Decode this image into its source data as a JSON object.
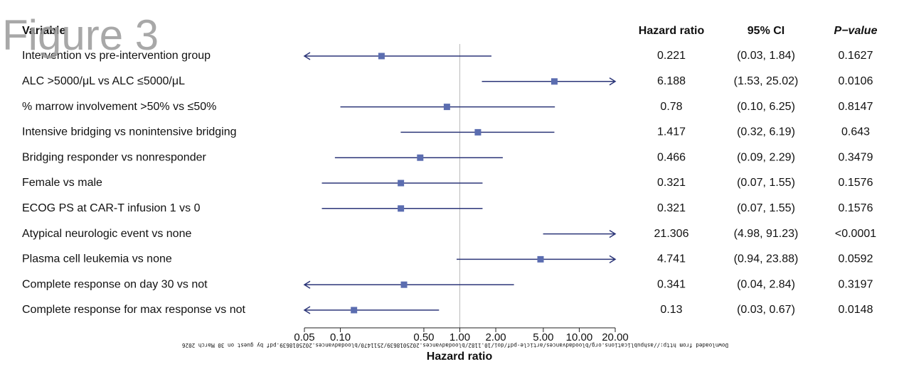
{
  "figure_label": "Figure 3",
  "watermark": "Downloaded from http://ashpublications.org/bloodadvances/article-pdf/doi/10.1182/bloodadvances.2025018639/2511470/bloodadvances.2025018639.pdf by guest on 30 March 2026",
  "chart_data": {
    "type": "forest",
    "columns": {
      "variable": "Variable",
      "hr": "Hazard ratio",
      "ci": "95% CI",
      "p": "P−value"
    },
    "x_label": "Hazard ratio",
    "x_log": true,
    "xlim": [
      0.05,
      20
    ],
    "xticks": [
      0.05,
      {
        "value": 0.1,
        "label": "0.10"
      },
      {
        "value": 0.5,
        "label": "0.50"
      },
      {
        "value": 1,
        "label": "1.00"
      },
      {
        "value": 2,
        "label": "2.00"
      },
      {
        "value": 5,
        "label": "5.00"
      },
      {
        "value": 10,
        "label": "10.00"
      },
      {
        "value": 20,
        "label": "20.00"
      }
    ],
    "reference": 1,
    "color": "#2b3578",
    "marker_color": "#5b6db0",
    "categories": [
      "Intervention vs pre-intervention group",
      "ALC >5000/μL vs ALC ≤5000/μL",
      "% marrow involvement >50% vs ≤50%",
      "Intensive bridging vs nonintensive bridging",
      "Bridging responder vs nonresponder",
      "Female vs male",
      "ECOG PS at CAR-T infusion 1 vs 0",
      "Atypical neurologic event vs none",
      "Plasma cell leukemia vs none",
      "Complete response on day 30 vs not",
      "Complete response for max response vs not"
    ],
    "values": [
      0.221,
      6.188,
      0.78,
      1.417,
      0.466,
      0.321,
      0.321,
      21.306,
      4.741,
      0.341,
      0.13
    ],
    "ci_lower": [
      0.03,
      1.53,
      0.1,
      0.32,
      0.09,
      0.07,
      0.07,
      4.98,
      0.94,
      0.04,
      0.03
    ],
    "ci_upper": [
      1.84,
      25.02,
      6.25,
      6.19,
      2.29,
      1.55,
      1.55,
      91.23,
      23.88,
      2.84,
      0.67
    ],
    "ci_labels": [
      "(0.03, 1.84)",
      "(1.53, 25.02)",
      "(0.10, 6.25)",
      "(0.32, 6.19)",
      "(0.09, 2.29)",
      "(0.07, 1.55)",
      "(0.07, 1.55)",
      "(4.98, 91.23)",
      "(0.94, 23.88)",
      "(0.04, 2.84)",
      "(0.03, 0.67)"
    ],
    "p_values": [
      0.1627,
      0.0106,
      0.8147,
      0.643,
      0.3479,
      0.1576,
      0.1576,
      {
        "value": 0.0001,
        "label": "<0.0001"
      },
      0.0592,
      0.3197,
      0.0148
    ]
  }
}
